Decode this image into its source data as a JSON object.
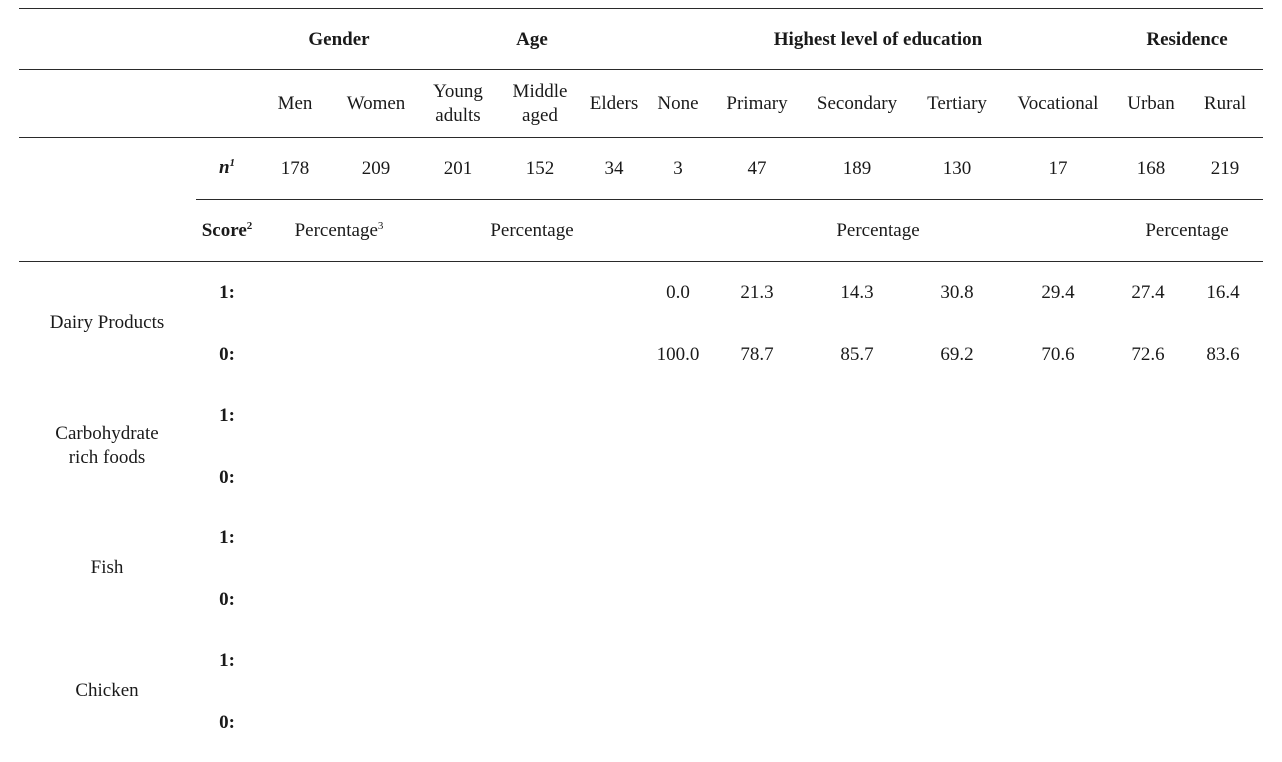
{
  "groups": {
    "gender": "Gender",
    "age": "Age",
    "education": "Highest level of education",
    "residence": "Residence"
  },
  "columns": {
    "men": "Men",
    "women": "Women",
    "young_adults": [
      "Young",
      "adults"
    ],
    "middle_aged": [
      "Middle",
      "aged"
    ],
    "elders": "Elders",
    "none": "None",
    "primary": "Primary",
    "secondary": "Secondary",
    "tertiary": "Tertiary",
    "vocational": "Vocational",
    "urban": "Urban",
    "rural": "Rural"
  },
  "n_row": {
    "label": "n",
    "sup": "1",
    "values": [
      "178",
      "209",
      "201",
      "152",
      "34",
      "3",
      "47",
      "189",
      "130",
      "17",
      "168",
      "219"
    ]
  },
  "score_row": {
    "label": "Score",
    "sup": "2",
    "gender_pct": "Percentage",
    "gender_sup": "3",
    "age_pct": "Percentage",
    "education_pct": "Percentage",
    "residence_pct": "Percentage"
  },
  "foods": [
    {
      "name": [
        "Dairy Products"
      ],
      "rows": [
        {
          "score": "1:",
          "none": "0.0",
          "primary": "21.3",
          "secondary": "14.3",
          "tertiary": "30.8",
          "vocational": "29.4",
          "urban": "27.4",
          "rural": "16.4"
        },
        {
          "score": "0:",
          "none": "100.0",
          "primary": "78.7",
          "secondary": "85.7",
          "tertiary": "69.2",
          "vocational": "70.6",
          "urban": "72.6",
          "rural": "83.6"
        }
      ]
    },
    {
      "name": [
        "Carbohydrate",
        "rich foods"
      ],
      "rows": [
        {
          "score": "1:"
        },
        {
          "score": "0:"
        }
      ]
    },
    {
      "name": [
        "Fish"
      ],
      "rows": [
        {
          "score": "1:"
        },
        {
          "score": "0:"
        }
      ]
    },
    {
      "name": [
        "Chicken"
      ],
      "rows": [
        {
          "score": "1:"
        },
        {
          "score": "0:"
        }
      ]
    }
  ]
}
